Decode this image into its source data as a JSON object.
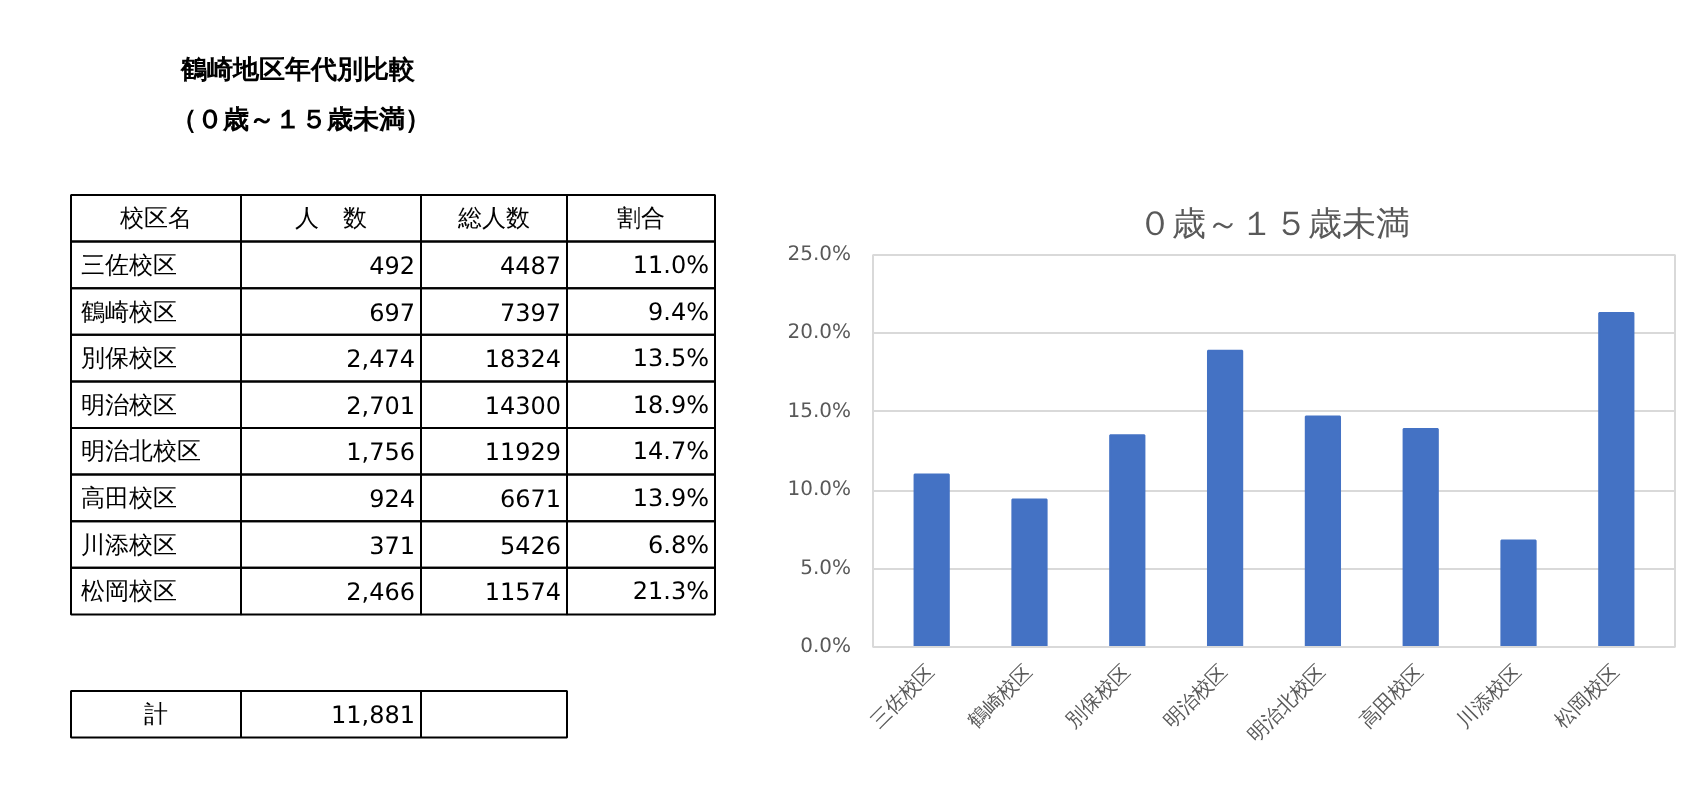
{
  "chart_data": [
    {
      "type": "other",
      "title": "鶴崎地区年代別比較",
      "subtitle": "（０歳～１５歳未満）",
      "annotations": [
        "校区名",
        "人　数",
        "総人数",
        "割合",
        "三佐校区",
        "492",
        "4487",
        "11.0%",
        "鶴崎校区",
        "697",
        "7397",
        "9.4%",
        "別保校区",
        "2,474",
        "18324",
        "13.5%",
        "明治校区",
        "2,701",
        "14300",
        "18.9%",
        "明治北校区",
        "1,756",
        "11929",
        "14.7%",
        "高田校区",
        "924",
        "6671",
        "13.9%",
        "川添校区",
        "371",
        "5426",
        "6.8%",
        "松岡校区",
        "2,466",
        "11574",
        "21.3%",
        "計",
        "11,881"
      ]
    },
    {
      "type": "bar",
      "title": "０歳～１５歳未満",
      "categories": [
        "三佐校区",
        "鶴崎校区",
        "別保校区",
        "明治校区",
        "明治北校区",
        "高田校区",
        "川添校区",
        "松岡校区"
      ],
      "values": [
        11.0,
        9.4,
        13.5,
        18.9,
        14.7,
        13.9,
        6.8,
        21.3
      ],
      "color": "#4472c4",
      "ylim": [
        0,
        25
      ],
      "yticks": [
        {
          "value": 0,
          "label": "0.0%"
        },
        {
          "value": 5,
          "label": "5.0%"
        },
        {
          "value": 10,
          "label": "10.0%"
        },
        {
          "value": 15,
          "label": "15.0%"
        },
        {
          "value": 20,
          "label": "20.0%"
        },
        {
          "value": 25,
          "label": "25.0%"
        }
      ],
      "grid": "y"
    }
  ]
}
